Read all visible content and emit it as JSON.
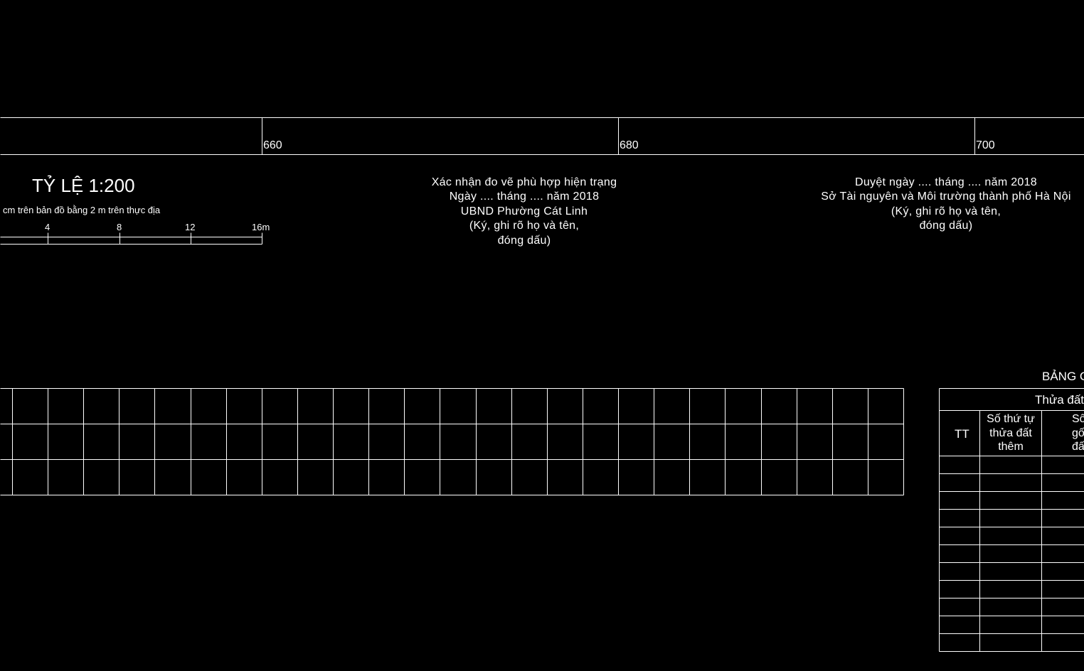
{
  "ruler": {
    "labels": [
      "660",
      "680",
      "700"
    ]
  },
  "scale": {
    "title": "TỶ LỆ 1:200",
    "note": "cm trên bản đồ bằng 2 m trên thực địa",
    "ticks": [
      "4",
      "8",
      "12",
      "16m"
    ]
  },
  "confirm_block": {
    "lines": [
      "Xác nhận đo vẽ phù hợp hiện trạng",
      "Ngày .... tháng .... năm 2018",
      "UBND Phường Cát Linh",
      "(Ký, ghi rõ họ và tên,",
      "đóng dấu)"
    ]
  },
  "approve_block": {
    "lines": [
      "Duyệt ngày .... tháng .... năm 2018",
      "Sở Tài nguyên và Môi trường thành phố Hà Nội",
      "(Ký, ghi rõ họ và tên,",
      "đóng dấu)"
    ]
  },
  "table": {
    "title": "BẢNG C",
    "group_header": "Thửa đất",
    "col_tt": "TT",
    "col_stt": [
      "Số thứ tự",
      "thửa đất",
      "thêm"
    ],
    "col_so": [
      "Số",
      "gố",
      "đấ"
    ]
  },
  "colors": {
    "background": "#000000",
    "lines": "#ffffff"
  }
}
